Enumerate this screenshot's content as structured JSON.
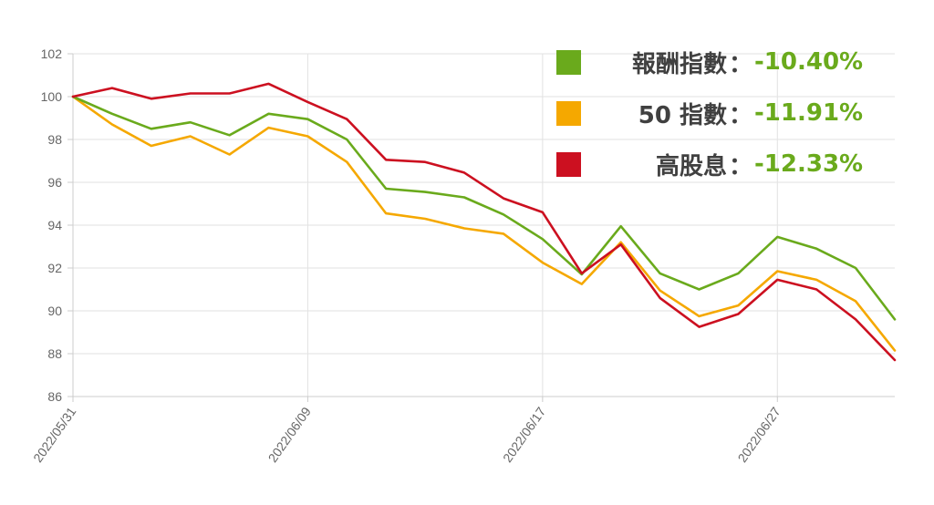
{
  "chart_data": {
    "type": "line",
    "title": "",
    "xlabel": "",
    "ylabel": "",
    "ylim": [
      86,
      102
    ],
    "y_ticks": [
      86,
      88,
      90,
      92,
      94,
      96,
      98,
      100,
      102
    ],
    "x_tick_labels": [
      {
        "index": 0,
        "label": "2022/05/31"
      },
      {
        "index": 6,
        "label": "2022/06/09"
      },
      {
        "index": 12,
        "label": "2022/06/17"
      },
      {
        "index": 18,
        "label": "2022/06/27"
      }
    ],
    "point_count": 22,
    "grid": true,
    "legend_position": "top-right",
    "series": [
      {
        "name": "報酬指數",
        "color": "#6aaa1c",
        "change": "-10.40%",
        "values": [
          100.0,
          99.2,
          98.5,
          98.8,
          98.2,
          99.2,
          98.95,
          98.0,
          95.7,
          95.55,
          95.3,
          94.5,
          93.35,
          91.7,
          93.95,
          91.75,
          91.0,
          91.75,
          93.45,
          92.9,
          92.0,
          89.6
        ]
      },
      {
        "name": "50 指數",
        "color": "#f5a800",
        "change": "-11.91%",
        "values": [
          100.0,
          98.7,
          97.7,
          98.15,
          97.3,
          98.55,
          98.15,
          96.95,
          94.55,
          94.3,
          93.85,
          93.6,
          92.25,
          91.25,
          93.2,
          90.95,
          89.75,
          90.25,
          91.85,
          91.45,
          90.45,
          88.15
        ]
      },
      {
        "name": "高股息",
        "color": "#cc1020",
        "change": "-12.33%",
        "values": [
          100.0,
          100.4,
          99.9,
          100.15,
          100.15,
          100.6,
          99.75,
          98.95,
          97.05,
          96.95,
          96.45,
          95.25,
          94.6,
          91.75,
          93.1,
          90.6,
          89.25,
          89.85,
          91.45,
          91.0,
          89.6,
          87.7
        ]
      }
    ]
  }
}
